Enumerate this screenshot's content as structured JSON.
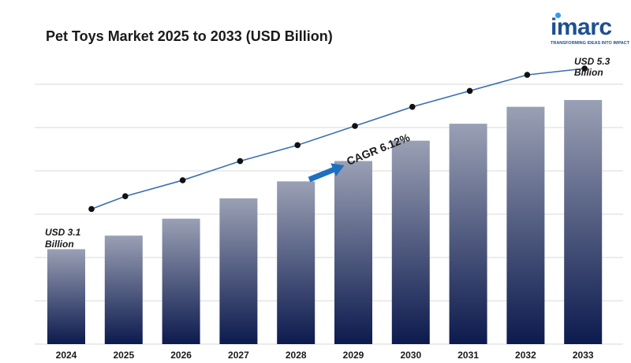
{
  "chart_data": {
    "type": "bar",
    "title": "Pet Toys Market 2025 to 2033 (USD Billion)",
    "categories": [
      "2024",
      "2025",
      "2026",
      "2027",
      "2028",
      "2029",
      "2030",
      "2031",
      "2032",
      "2033"
    ],
    "series": [
      {
        "values": [
          3.1,
          3.3,
          3.55,
          3.85,
          4.1,
          4.4,
          4.7,
          4.95,
          5.2,
          5.3
        ]
      }
    ],
    "trend_line": [
      3.1,
      3.3,
      3.55,
      3.85,
      4.1,
      4.4,
      4.7,
      4.95,
      5.2,
      5.3
    ],
    "ylim": [
      1.7,
      5.3
    ],
    "grid": true,
    "annotations": {
      "start_label": [
        "USD 3.1",
        "Billion"
      ],
      "end_label": [
        "USD 5.3",
        "Billion"
      ],
      "cagr": "CAGR  6.12%"
    },
    "colors": {
      "bar_top": "#9aa0b4",
      "bar_bottom": "#0c1a4e",
      "line": "#3a6fb0",
      "arrow": "#1f6fbf",
      "grid": "#d9d9d9"
    }
  },
  "brand": {
    "name": "imarc",
    "tagline": "TRANSFORMING IDEAS INTO IMPACT",
    "color": "#1d4f91"
  }
}
